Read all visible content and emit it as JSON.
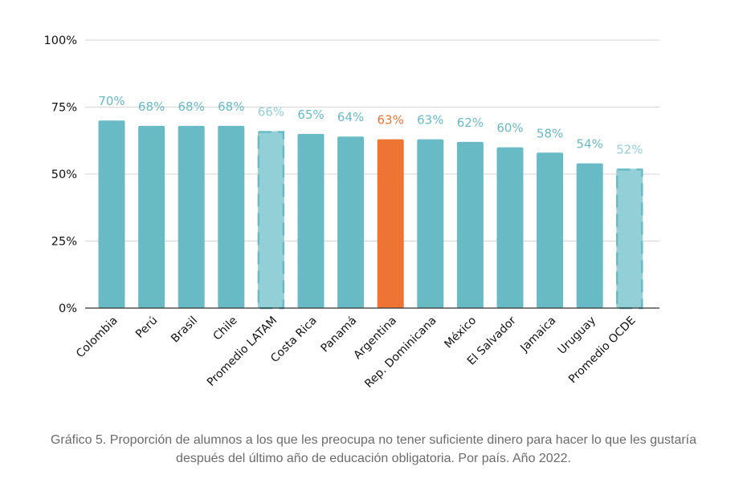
{
  "colors": {
    "bar": "#68bac4",
    "highlight": "#ee7433",
    "average": "#93cfd7",
    "label": "#68bac4",
    "average_label": "#93cfd7",
    "highlight_label": "#ee7433",
    "axis_text": "#111111",
    "grid": "#d6d6d6"
  },
  "chart_data": {
    "type": "bar",
    "categories": [
      "Colombia",
      "Perú",
      "Brasil",
      "Chile",
      "Promedio LATAM",
      "Costa Rica",
      "Panamá",
      "Argentina",
      "Rep. Dominicana",
      "México",
      "El Salvador",
      "Jamaica",
      "Uruguay",
      "Promedio OCDE"
    ],
    "values": [
      70,
      68,
      68,
      68,
      66,
      65,
      64,
      63,
      63,
      62,
      60,
      58,
      54,
      52
    ],
    "data_labels": [
      "70%",
      "68%",
      "68%",
      "68%",
      "66%",
      "65%",
      "64%",
      "63%",
      "63%",
      "62%",
      "60%",
      "58%",
      "54%",
      "52%"
    ],
    "bar_styles": [
      "normal",
      "normal",
      "normal",
      "normal",
      "average",
      "normal",
      "normal",
      "highlight",
      "normal",
      "normal",
      "normal",
      "normal",
      "normal",
      "average"
    ],
    "yticks": [
      0,
      25,
      50,
      75,
      100
    ],
    "ytick_labels": [
      "0%",
      "25%",
      "50%",
      "75%",
      "100%"
    ],
    "ylim": [
      0,
      100
    ],
    "grid": true,
    "title": "",
    "xlabel": "",
    "ylabel": ""
  },
  "caption": "Gráfico 5. Proporción de alumnos a los que les preocupa no tener suficiente dinero para hacer lo que les gustaría después del último año de educación obligatoria. Por país. Año 2022."
}
